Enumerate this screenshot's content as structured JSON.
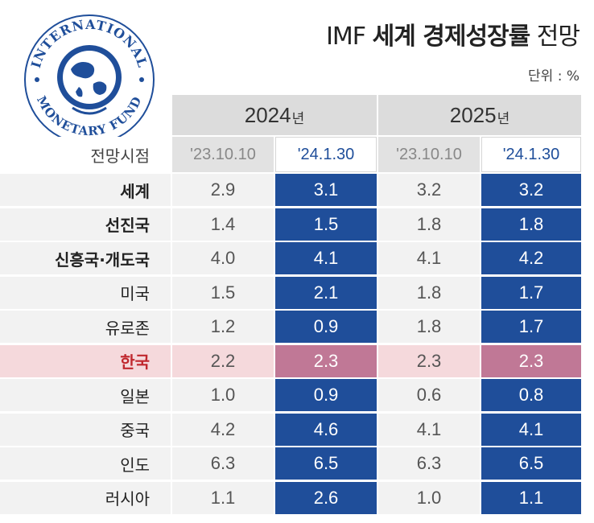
{
  "title": {
    "prefix": "IMF ",
    "bold": "세계 경제성장률",
    "suffix": " 전망"
  },
  "unit": "단위 : %",
  "logo": {
    "top_text": "INTERNATIONAL",
    "bottom_text": "MONETARY FUND"
  },
  "chart_data": {
    "type": "table",
    "title": "IMF 세계 경제성장률 전망",
    "unit": "%",
    "years": [
      {
        "year": "2024",
        "suffix": "년"
      },
      {
        "year": "2025",
        "suffix": "년"
      }
    ],
    "column_header_label": "전망시점",
    "forecast_dates": [
      "'23.10.10",
      "'24.1.30",
      "'23.10.10",
      "'24.1.30"
    ],
    "rows": [
      {
        "label": "세계",
        "values": [
          "2.9",
          "3.1",
          "3.2",
          "3.2"
        ]
      },
      {
        "label": "선진국",
        "values": [
          "1.4",
          "1.5",
          "1.8",
          "1.8"
        ]
      },
      {
        "label": "신흥국·개도국",
        "values": [
          "4.0",
          "4.1",
          "4.1",
          "4.2"
        ]
      },
      {
        "label": "미국",
        "values": [
          "1.5",
          "2.1",
          "1.8",
          "1.7"
        ]
      },
      {
        "label": "유로존",
        "values": [
          "1.2",
          "0.9",
          "1.8",
          "1.7"
        ]
      },
      {
        "label": "한국",
        "values": [
          "2.2",
          "2.3",
          "2.3",
          "2.3"
        ]
      },
      {
        "label": "일본",
        "values": [
          "1.0",
          "0.9",
          "0.6",
          "0.8"
        ]
      },
      {
        "label": "중국",
        "values": [
          "4.2",
          "4.6",
          "4.1",
          "4.1"
        ]
      },
      {
        "label": "인도",
        "values": [
          "6.3",
          "6.5",
          "6.3",
          "6.5"
        ]
      },
      {
        "label": "러시아",
        "values": [
          "1.1",
          "2.6",
          "1.0",
          "1.1"
        ]
      }
    ]
  },
  "colors": {
    "accent": "#1f4e9a",
    "highlight": "#c07896",
    "highlight_label": "#c0282e"
  }
}
